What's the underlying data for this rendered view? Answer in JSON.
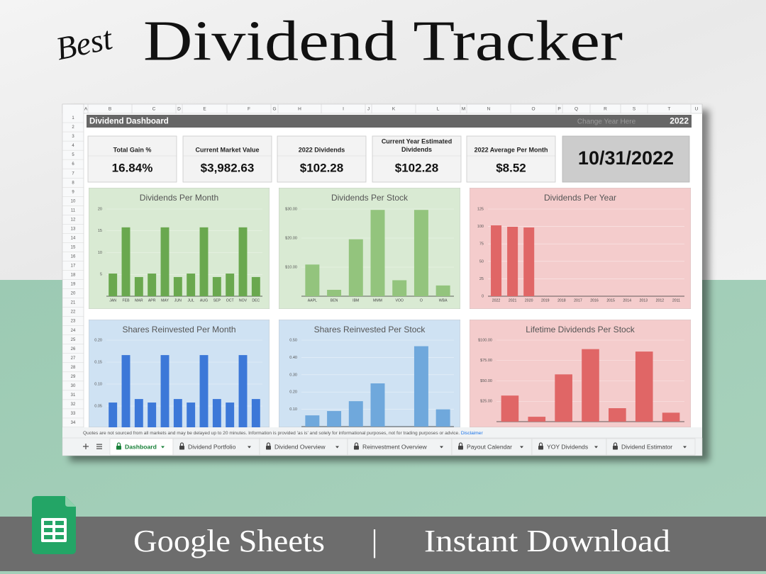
{
  "header": {
    "script": "Best",
    "title": "Dividend Tracker"
  },
  "sheet": {
    "columns": [
      "A",
      "B",
      "C",
      "D",
      "E",
      "F",
      "G",
      "H",
      "I",
      "J",
      "K",
      "L",
      "M",
      "N",
      "O",
      "P",
      "Q",
      "R",
      "S",
      "T",
      "U"
    ],
    "rows": [
      1,
      2,
      3,
      4,
      5,
      6,
      7,
      8,
      9,
      10,
      11,
      12,
      13,
      14,
      15,
      16,
      17,
      18,
      19,
      20,
      21,
      22,
      23,
      24,
      25,
      26,
      27,
      28,
      29,
      30,
      31,
      32,
      33,
      34
    ],
    "title": "Dividend Dashboard",
    "year_hint": "Change Year Here",
    "year": "2022"
  },
  "kpis": [
    {
      "label": [
        "Total Gain %"
      ],
      "value": "16.84%"
    },
    {
      "label": [
        "Current Market Value"
      ],
      "value": "$3,982.63"
    },
    {
      "label": [
        "2022 Dividends"
      ],
      "value": "$102.28"
    },
    {
      "label": [
        "Current Year Estimated",
        "Dividends"
      ],
      "value": "$102.28"
    },
    {
      "label": [
        "2022 Average Per Month"
      ],
      "value": "$8.52"
    }
  ],
  "date": "10/31/2022",
  "chart_data": [
    {
      "type": "bar",
      "title": "Dividends Per Month",
      "categories": [
        "JAN",
        "FEB",
        "MAR",
        "APR",
        "MAY",
        "JUN",
        "JUL",
        "AUG",
        "SEP",
        "OCT",
        "NOV",
        "DEC"
      ],
      "values": [
        5.2,
        15.8,
        4.4,
        5.2,
        15.8,
        4.4,
        5.2,
        15.8,
        4.4,
        5.2,
        15.8,
        4.4
      ],
      "color": "#6aa84f",
      "background": "#d9ead3",
      "ylim": [
        0,
        20
      ],
      "yticks": [
        5,
        10,
        15,
        20
      ],
      "grid": true
    },
    {
      "type": "bar",
      "title": "Dividends Per Stock",
      "categories": [
        "AAPL",
        "BEN",
        "IBM",
        "MMM",
        "VOO",
        "O",
        "WBA"
      ],
      "values": [
        10.9,
        2.2,
        19.6,
        29.7,
        5.5,
        29.7,
        3.7
      ],
      "color": "#93c47d",
      "background": "#d9ead3",
      "ylim": [
        0,
        30
      ],
      "yticks": [
        {
          "value": 10,
          "label": "$10.00"
        },
        {
          "value": 20,
          "label": "$20.00"
        },
        {
          "value": 30,
          "label": "$30.00"
        }
      ],
      "grid": true
    },
    {
      "type": "bar",
      "title": "Dividends Per Year",
      "categories": [
        "2022",
        "2021",
        "2020",
        "2019",
        "2018",
        "2017",
        "2016",
        "2015",
        "2014",
        "2013",
        "2012",
        "2011"
      ],
      "values": [
        101.6,
        99.6,
        98.6,
        0,
        0,
        0,
        0,
        0,
        0,
        0,
        0,
        0
      ],
      "color": "#e06666",
      "background": "#f4cccc",
      "ylim": [
        0,
        125
      ],
      "yticks": [
        0,
        25,
        50,
        75,
        100,
        125
      ],
      "grid": true
    },
    {
      "type": "bar",
      "title": "Shares Reinvested Per Month",
      "categories": [
        null,
        null,
        null,
        null,
        null,
        null,
        null,
        null,
        null,
        null,
        null,
        null
      ],
      "values": [
        0.058,
        0.166,
        0.066,
        0.058,
        0.166,
        0.066,
        0.058,
        0.166,
        0.066,
        0.058,
        0.166,
        0.066
      ],
      "color": "#3c78d8",
      "background": "#cfe2f3",
      "ylim": [
        0,
        0.2
      ],
      "yticks": [
        0.05,
        {
          "value": 0.1,
          "label": "0.10"
        },
        0.15,
        {
          "value": 0.2,
          "label": "0.20"
        }
      ],
      "grid": true
    },
    {
      "type": "bar",
      "title": "Shares Reinvested Per Stock",
      "categories": [
        null,
        null,
        null,
        null,
        null,
        null,
        null
      ],
      "values": [
        0.065,
        0.09,
        0.147,
        0.25,
        0,
        0.465,
        0.1
      ],
      "color": "#6fa8dc",
      "background": "#cfe2f3",
      "ylim": [
        0,
        0.5
      ],
      "yticks": [
        {
          "value": 0.1,
          "label": "0.10"
        },
        {
          "value": 0.2,
          "label": "0.20"
        },
        {
          "value": 0.3,
          "label": "0.30"
        },
        {
          "value": 0.4,
          "label": "0.40"
        },
        {
          "value": 0.5,
          "label": "0.50"
        }
      ],
      "grid": true
    },
    {
      "type": "bar",
      "title": "Lifetime Dividends Per Stock",
      "categories": [
        null,
        null,
        null,
        null,
        null,
        null,
        null
      ],
      "values": [
        32,
        6,
        58,
        89,
        16.5,
        86,
        11
      ],
      "color": "#e06666",
      "background": "#f4cccc",
      "ylim": [
        0,
        100
      ],
      "yticks": [
        {
          "value": 25,
          "label": "$25.00"
        },
        {
          "value": 50,
          "label": "$50.00"
        },
        {
          "value": 75,
          "label": "$75.00"
        },
        {
          "value": 100,
          "label": "$100.00"
        }
      ],
      "grid": true
    }
  ],
  "footer": {
    "notice": "Quotes are not sourced from all markets and may be delayed up to 20 minutes. Information is provided 'as is' and solely for informational purposes, not for trading purposes or advice.",
    "link": "Disclaimer"
  },
  "tabs": [
    {
      "label": "Dashboard",
      "active": true
    },
    {
      "label": "Dividend Portfolio",
      "active": false
    },
    {
      "label": "Dividend Overview",
      "active": false
    },
    {
      "label": "Reinvestment Overview",
      "active": false
    },
    {
      "label": "Payout Calendar",
      "active": false
    },
    {
      "label": "YOY Dividends",
      "active": false
    },
    {
      "label": "Dividend Estimator",
      "active": false
    }
  ],
  "banner": {
    "left": "Google Sheets",
    "separator": "|",
    "right": "Instant Download"
  }
}
